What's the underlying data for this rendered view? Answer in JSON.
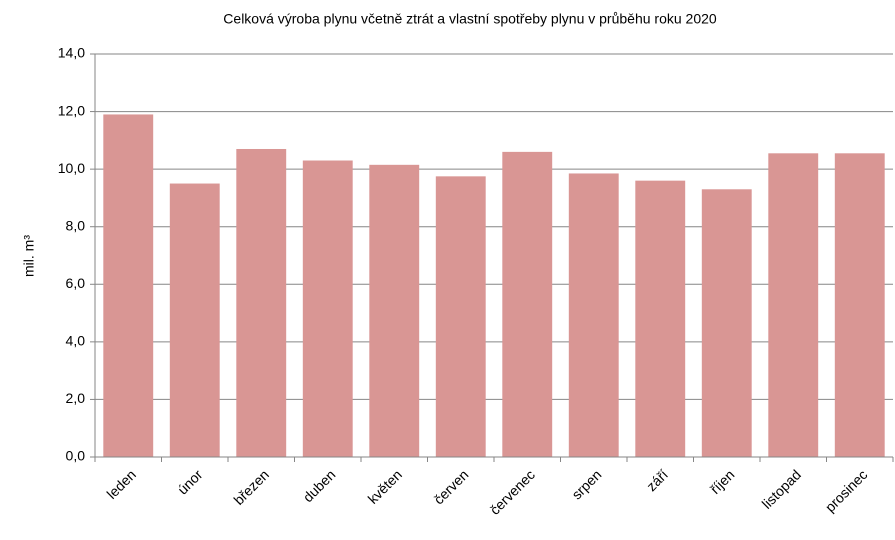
{
  "chart_data": {
    "type": "bar",
    "title": "Celková výroba plynu včetně ztrát a vlastní spotřeby plynu v průběhu roku 2020",
    "y_label": "mil. m³",
    "categories": [
      "leden",
      "únor",
      "březen",
      "duben",
      "květen",
      "červen",
      "červenec",
      "srpen",
      "září",
      "říjen",
      "listopad",
      "prosinec"
    ],
    "values": [
      11.9,
      9.5,
      10.7,
      10.3,
      10.15,
      9.75,
      10.6,
      9.85,
      9.6,
      9.3,
      10.55,
      10.55
    ],
    "color": "#d99694",
    "ylim": [
      0,
      14
    ],
    "yticks": [
      {
        "value": 0,
        "label": "0,0"
      },
      {
        "value": 2,
        "label": "2,0"
      },
      {
        "value": 4,
        "label": "4,0"
      },
      {
        "value": 6,
        "label": "6,0"
      },
      {
        "value": 8,
        "label": "8,0"
      },
      {
        "value": 10,
        "label": "10,0"
      },
      {
        "value": 12,
        "label": "12,0"
      },
      {
        "value": 14,
        "label": "14,0"
      }
    ],
    "grid": true
  }
}
